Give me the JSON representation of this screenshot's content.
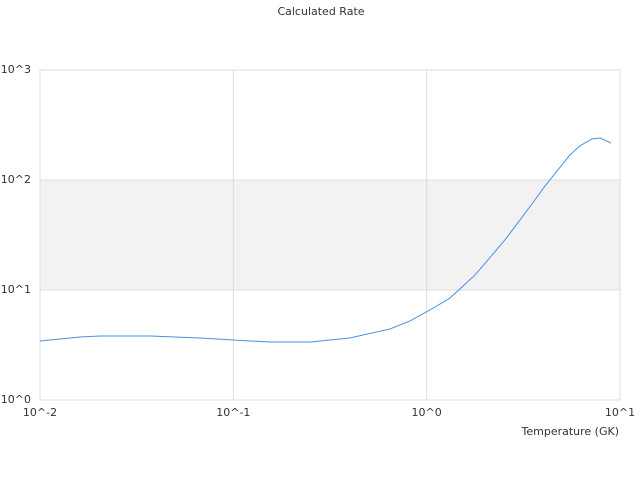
{
  "chart_data": {
    "type": "line",
    "title": "Calculated Rate",
    "x_label": "Temperature (GK)",
    "x_scale": "log",
    "y_scale": "log",
    "grid": true,
    "alternate_bands": true,
    "xlim": [
      0.01,
      10
    ],
    "ylim": [
      1,
      1000
    ],
    "xticks": [
      {
        "value": 0.01,
        "label": "10^-2"
      },
      {
        "value": 0.1,
        "label": "10^-1"
      },
      {
        "value": 1,
        "label": "10^0"
      },
      {
        "value": 10,
        "label": "10^1"
      }
    ],
    "yticks": [
      {
        "value": 1,
        "label": "10^0"
      },
      {
        "value": 10,
        "label": "10^1"
      },
      {
        "value": 100,
        "label": "10^2"
      },
      {
        "value": 1000,
        "label": "10^3"
      }
    ],
    "x": [
      0.01,
      0.0161,
      0.0204,
      0.0371,
      0.0672,
      0.122,
      0.155,
      0.25,
      0.4,
      0.645,
      0.82,
      1.04,
      1.32,
      1.78,
      2.54,
      3.63,
      4.09,
      5.51,
      6.2,
      7.16,
      7.89,
      8.98
    ],
    "series": [
      {
        "color": "#4a90e2",
        "values": [
          3.44,
          3.74,
          3.82,
          3.82,
          3.66,
          3.44,
          3.37,
          3.37,
          3.66,
          4.42,
          5.23,
          6.58,
          8.45,
          13.7,
          28.5,
          65.8,
          88,
          169,
          204,
          236,
          241,
          217
        ]
      }
    ]
  }
}
